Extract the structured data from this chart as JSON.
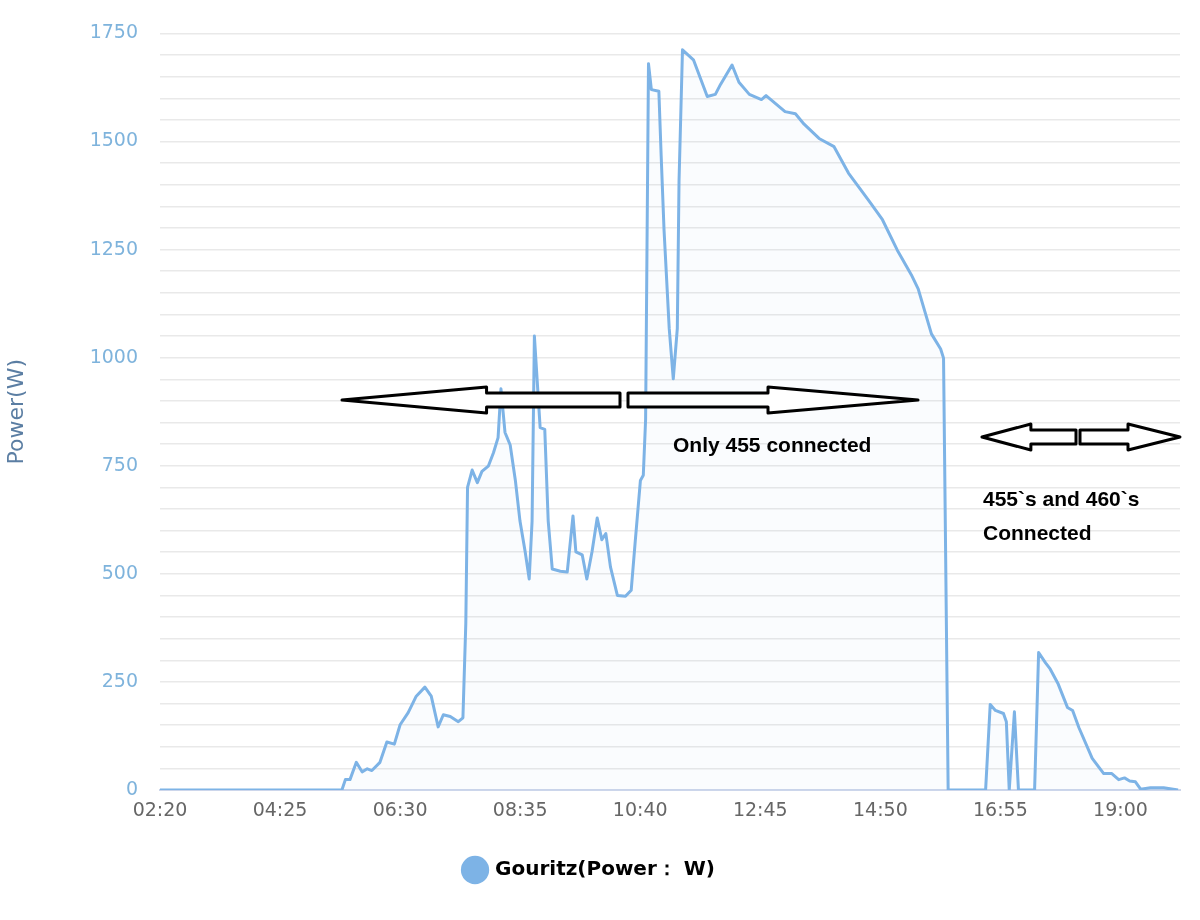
{
  "chart_data": {
    "type": "area",
    "ylabel": "Power(W)",
    "legend": "bottom",
    "grid": "y",
    "marker": "none",
    "line_style": "solid",
    "xlim": [
      2.3333,
      20.0333
    ],
    "xticks": [
      {
        "value": 2.3333,
        "label": "02:20"
      },
      {
        "value": 4.4167,
        "label": "04:25"
      },
      {
        "value": 6.5,
        "label": "06:30"
      },
      {
        "value": 8.5833,
        "label": "08:35"
      },
      {
        "value": 10.6667,
        "label": "10:40"
      },
      {
        "value": 12.75,
        "label": "12:45"
      },
      {
        "value": 14.8333,
        "label": "14:50"
      },
      {
        "value": 16.9167,
        "label": "16:55"
      },
      {
        "value": 19,
        "label": "19:00"
      }
    ],
    "ylim": [
      0,
      1750
    ],
    "yticks": [
      0,
      {
        "value": 50,
        "label": null
      },
      {
        "value": 100,
        "label": null
      },
      {
        "value": 150,
        "label": null
      },
      {
        "value": 200,
        "label": null
      },
      250,
      {
        "value": 300,
        "label": null
      },
      {
        "value": 350,
        "label": null
      },
      {
        "value": 400,
        "label": null
      },
      {
        "value": 450,
        "label": null
      },
      500,
      {
        "value": 550,
        "label": null
      },
      {
        "value": 600,
        "label": null
      },
      {
        "value": 650,
        "label": null
      },
      {
        "value": 700,
        "label": null
      },
      750,
      {
        "value": 800,
        "label": null
      },
      {
        "value": 850,
        "label": null
      },
      {
        "value": 900,
        "label": null
      },
      {
        "value": 950,
        "label": null
      },
      1000,
      {
        "value": 1050,
        "label": null
      },
      {
        "value": 1100,
        "label": null
      },
      {
        "value": 1150,
        "label": null
      },
      {
        "value": 1200,
        "label": null
      },
      1250,
      {
        "value": 1300,
        "label": null
      },
      {
        "value": 1350,
        "label": null
      },
      {
        "value": 1400,
        "label": null
      },
      {
        "value": 1450,
        "label": null
      },
      1500,
      {
        "value": 1550,
        "label": null
      },
      {
        "value": 1600,
        "label": null
      },
      {
        "value": 1650,
        "label": null
      },
      {
        "value": 1700,
        "label": null
      },
      1750
    ],
    "annotations": [
      "Only 455 connected",
      "455`s and 460`s Connected"
    ],
    "series": [
      {
        "name": "Gouritz(Power： W)",
        "color": "#7db3e6",
        "x": [
          2.3333,
          5.49,
          5.55,
          5.63,
          5.74,
          5.84,
          5.93,
          6.01,
          6.15,
          6.27,
          6.4,
          6.5,
          6.64,
          6.78,
          6.93,
          7.04,
          7.16,
          7.25,
          7.37,
          7.51,
          7.59,
          7.64,
          7.67,
          7.75,
          7.84,
          7.92,
          8.03,
          8.12,
          8.2,
          8.25,
          8.32,
          8.41,
          8.5,
          8.58,
          8.67,
          8.74,
          8.79,
          8.83,
          8.93,
          9.01,
          9.07,
          9.14,
          9.28,
          9.4,
          9.5,
          9.55,
          9.66,
          9.74,
          9.83,
          9.92,
          10,
          10.07,
          10.15,
          10.27,
          10.41,
          10.51,
          10.58,
          10.67,
          10.72,
          10.76,
          10.81,
          10.86,
          10.99,
          11.03,
          11.08,
          11.17,
          11.24,
          11.31,
          11.34,
          11.4,
          11.59,
          11.83,
          11.97,
          12.06,
          12.26,
          12.38,
          12.56,
          12.77,
          12.85,
          13.18,
          13.36,
          13.51,
          13.77,
          14.03,
          14.28,
          14.63,
          14.87,
          15.13,
          15.37,
          15.49,
          15.72,
          15.88,
          15.93,
          16.01,
          16.66,
          16.74,
          16.83,
          16.97,
          17.02,
          17.07,
          17.16,
          17.23,
          17.51,
          17.58,
          17.7,
          17.78,
          17.92,
          18.08,
          18.17,
          18.28,
          18.51,
          18.71,
          18.85,
          18.97,
          19.07,
          19.16,
          19.26,
          19.35,
          19.52,
          19.75,
          20
        ],
        "values": [
          0,
          0,
          24,
          24,
          64,
          42,
          49,
          45,
          64,
          111,
          106,
          151,
          179,
          217,
          238,
          217,
          146,
          174,
          170,
          158,
          167,
          386,
          700,
          740,
          711,
          737,
          749,
          780,
          815,
          928,
          827,
          798,
          716,
          622,
          551,
          488,
          622,
          1050,
          838,
          834,
          622,
          511,
          506,
          504,
          634,
          551,
          544,
          488,
          551,
          629,
          579,
          593,
          516,
          450,
          448,
          462,
          575,
          716,
          728,
          857,
          1680,
          1620,
          1616,
          1467,
          1295,
          1067,
          951,
          1067,
          1408,
          1712,
          1689,
          1604,
          1609,
          1632,
          1677,
          1637,
          1609,
          1597,
          1606,
          1569,
          1564,
          1540,
          1507,
          1488,
          1427,
          1364,
          1319,
          1248,
          1192,
          1159,
          1055,
          1020,
          999,
          0,
          0,
          198,
          184,
          177,
          158,
          0,
          181,
          0,
          0,
          318,
          294,
          280,
          245,
          191,
          184,
          144,
          73,
          38,
          38,
          24,
          28,
          21,
          19,
          2,
          5,
          5,
          0
        ]
      }
    ]
  }
}
